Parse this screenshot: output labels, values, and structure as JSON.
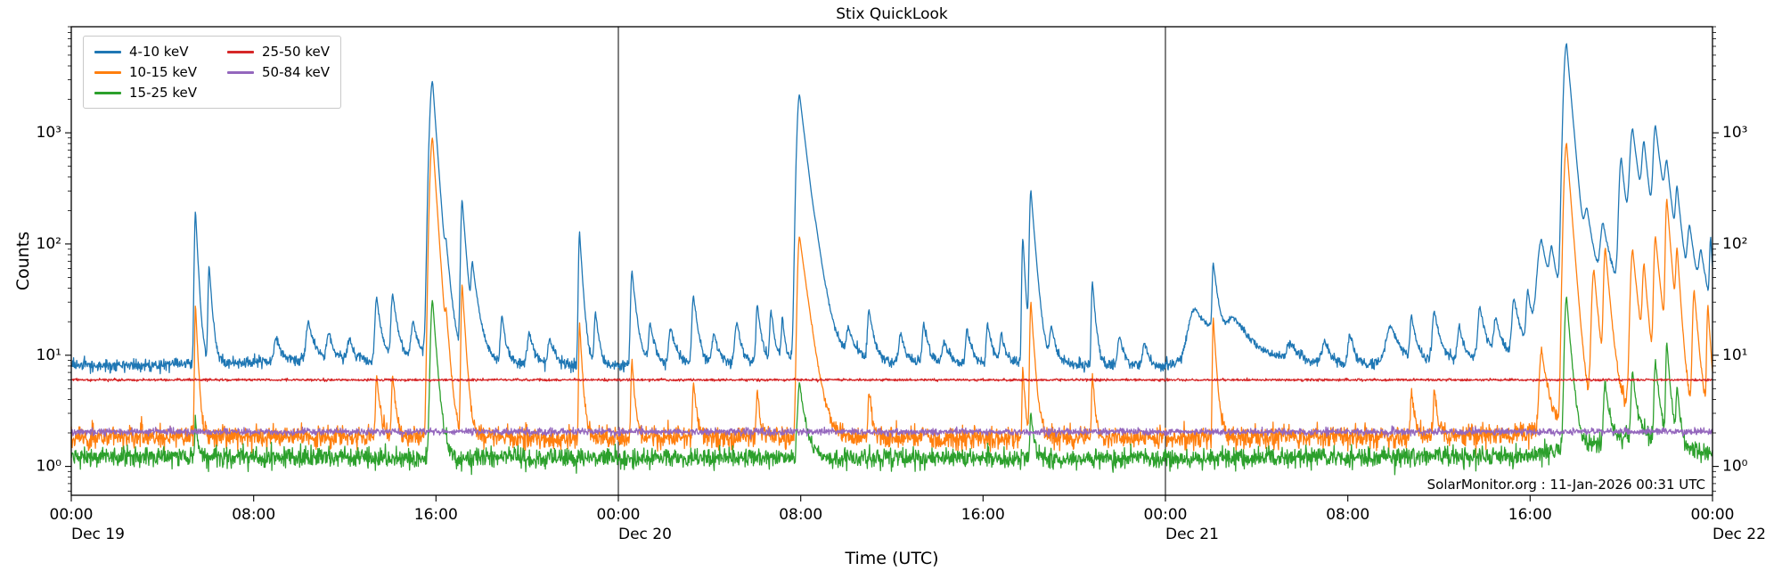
{
  "chart_data": {
    "type": "line",
    "title": "Stix QuickLook",
    "xlabel": "Time (UTC)",
    "ylabel": "Counts",
    "yscale": "log",
    "ylim": [
      0.55,
      9000
    ],
    "x_hours_range": [
      0,
      72
    ],
    "grid": false,
    "legend_position": "upper-left",
    "watermark": "SolarMonitor.org : 11-Jan-2026 00:31 UTC",
    "day_lines": [
      24,
      48
    ],
    "x_major_ticks": [
      {
        "t": 0,
        "label": "00:00",
        "day": "Dec 19"
      },
      {
        "t": 8,
        "label": "08:00"
      },
      {
        "t": 16,
        "label": "16:00"
      },
      {
        "t": 24,
        "label": "00:00",
        "day": "Dec 20"
      },
      {
        "t": 32,
        "label": "08:00"
      },
      {
        "t": 40,
        "label": "16:00"
      },
      {
        "t": 48,
        "label": "00:00",
        "day": "Dec 21"
      },
      {
        "t": 56,
        "label": "08:00"
      },
      {
        "t": 64,
        "label": "16:00"
      },
      {
        "t": 72,
        "label": "00:00",
        "day": "Dec 22"
      }
    ],
    "y_ticks": [
      {
        "v": 1,
        "label": "10⁰"
      },
      {
        "v": 10,
        "label": "10¹"
      },
      {
        "v": 100,
        "label": "10²"
      },
      {
        "v": 1000,
        "label": "10³"
      }
    ],
    "series": [
      {
        "name": "4-10 keV",
        "color": "#1f77b4",
        "noise_sigma": 0.06,
        "seed": 1,
        "baseline": [
          [
            0,
            8.2
          ],
          [
            3,
            8.0
          ],
          [
            6,
            8.5
          ],
          [
            9,
            8.8
          ],
          [
            12,
            9.0
          ],
          [
            15,
            9.2
          ],
          [
            16.2,
            10.5
          ],
          [
            17,
            9.2
          ],
          [
            18,
            8.6
          ],
          [
            21,
            8.2
          ],
          [
            24,
            8.0
          ],
          [
            27,
            8.2
          ],
          [
            30,
            8.5
          ],
          [
            32,
            9.5
          ],
          [
            32.8,
            12
          ],
          [
            33.6,
            9.5
          ],
          [
            36,
            8.5
          ],
          [
            39,
            8.3
          ],
          [
            42,
            8.6
          ],
          [
            45,
            8.0
          ],
          [
            48,
            7.8
          ],
          [
            49,
            9.5
          ],
          [
            50,
            12
          ],
          [
            51,
            11
          ],
          [
            52,
            9
          ],
          [
            54,
            8.2
          ],
          [
            56,
            8.0
          ],
          [
            58,
            8.4
          ],
          [
            60,
            8.6
          ],
          [
            62,
            9.2
          ],
          [
            63,
            9.6
          ],
          [
            64,
            11
          ],
          [
            65,
            14
          ],
          [
            66,
            24
          ],
          [
            67,
            30
          ],
          [
            68,
            34
          ],
          [
            69,
            46
          ],
          [
            70,
            36
          ],
          [
            71,
            22
          ],
          [
            72,
            15
          ]
        ],
        "spikes": [
          [
            5.45,
            190,
            0.04,
            0.1
          ],
          [
            6.05,
            55,
            0.04,
            0.12
          ],
          [
            9.0,
            6,
            0.08,
            0.2
          ],
          [
            10.4,
            11,
            0.08,
            0.25
          ],
          [
            11.3,
            7,
            0.08,
            0.2
          ],
          [
            12.2,
            5,
            0.08,
            0.2
          ],
          [
            13.4,
            24,
            0.06,
            0.18
          ],
          [
            14.1,
            26,
            0.06,
            0.2
          ],
          [
            15.0,
            11,
            0.08,
            0.2
          ],
          [
            15.85,
            2900,
            0.1,
            0.15
          ],
          [
            16.45,
            45,
            0.05,
            0.2
          ],
          [
            17.15,
            240,
            0.05,
            0.15
          ],
          [
            17.6,
            48,
            0.05,
            0.25
          ],
          [
            18.9,
            14,
            0.06,
            0.15
          ],
          [
            20.1,
            8,
            0.08,
            0.2
          ],
          [
            21.0,
            6,
            0.08,
            0.2
          ],
          [
            22.3,
            120,
            0.04,
            0.12
          ],
          [
            23.0,
            16,
            0.05,
            0.15
          ],
          [
            24.6,
            48,
            0.05,
            0.18
          ],
          [
            25.4,
            11,
            0.06,
            0.2
          ],
          [
            26.3,
            9,
            0.08,
            0.25
          ],
          [
            27.3,
            26,
            0.06,
            0.18
          ],
          [
            28.2,
            7,
            0.08,
            0.2
          ],
          [
            29.2,
            11,
            0.08,
            0.2
          ],
          [
            30.1,
            20,
            0.05,
            0.15
          ],
          [
            30.7,
            16,
            0.05,
            0.15
          ],
          [
            31.2,
            13,
            0.04,
            0.1
          ],
          [
            31.95,
            2200,
            0.09,
            0.25
          ],
          [
            32.7,
            18,
            0.1,
            0.5
          ],
          [
            34.1,
            7,
            0.08,
            0.25
          ],
          [
            35.0,
            16,
            0.06,
            0.2
          ],
          [
            36.4,
            7,
            0.08,
            0.2
          ],
          [
            37.4,
            11,
            0.06,
            0.2
          ],
          [
            38.3,
            5,
            0.08,
            0.2
          ],
          [
            39.3,
            9,
            0.06,
            0.2
          ],
          [
            40.2,
            11,
            0.05,
            0.18
          ],
          [
            40.8,
            7,
            0.05,
            0.18
          ],
          [
            41.75,
            105,
            0.04,
            0.1
          ],
          [
            42.1,
            290,
            0.05,
            0.16
          ],
          [
            43.0,
            9,
            0.06,
            0.2
          ],
          [
            44.8,
            38,
            0.04,
            0.13
          ],
          [
            46.0,
            7,
            0.08,
            0.2
          ],
          [
            47.1,
            5,
            0.08,
            0.2
          ],
          [
            49.3,
            16,
            0.25,
            0.7
          ],
          [
            50.1,
            52,
            0.04,
            0.18
          ],
          [
            51.0,
            9,
            0.25,
            0.9
          ],
          [
            53.5,
            4,
            0.15,
            0.4
          ],
          [
            55.0,
            5,
            0.12,
            0.3
          ],
          [
            56.1,
            7,
            0.08,
            0.2
          ],
          [
            57.9,
            10,
            0.2,
            0.4
          ],
          [
            58.8,
            13,
            0.06,
            0.2
          ],
          [
            59.8,
            16,
            0.08,
            0.25
          ],
          [
            60.9,
            9,
            0.08,
            0.2
          ],
          [
            61.8,
            18,
            0.08,
            0.25
          ],
          [
            62.5,
            11,
            0.08,
            0.25
          ],
          [
            63.3,
            22,
            0.08,
            0.25
          ],
          [
            63.9,
            26,
            0.06,
            0.2
          ],
          [
            64.5,
            95,
            0.15,
            0.35
          ],
          [
            64.95,
            55,
            0.08,
            0.25
          ],
          [
            65.6,
            6300,
            0.1,
            0.18
          ],
          [
            66.5,
            140,
            0.1,
            0.3
          ],
          [
            67.2,
            110,
            0.1,
            0.3
          ],
          [
            68.0,
            550,
            0.08,
            0.2
          ],
          [
            68.5,
            1000,
            0.1,
            0.25
          ],
          [
            69.0,
            650,
            0.08,
            0.2
          ],
          [
            69.5,
            1050,
            0.08,
            0.25
          ],
          [
            70.0,
            380,
            0.08,
            0.2
          ],
          [
            70.45,
            240,
            0.06,
            0.18
          ],
          [
            71.0,
            110,
            0.08,
            0.25
          ],
          [
            71.5,
            55,
            0.08,
            0.25
          ],
          [
            71.92,
            85,
            0.04,
            0.1
          ]
        ]
      },
      {
        "name": "10-15 keV",
        "color": "#ff7f0e",
        "noise_sigma": 0.11,
        "seed": 2,
        "baseline": [
          [
            0,
            1.85
          ],
          [
            24,
            1.82
          ],
          [
            48,
            1.8
          ],
          [
            63,
            1.9
          ],
          [
            65,
            2.2
          ],
          [
            66,
            2.6
          ],
          [
            68,
            3.2
          ],
          [
            69,
            3.6
          ],
          [
            70,
            3.1
          ],
          [
            71,
            2.6
          ],
          [
            72,
            2.3
          ]
        ],
        "spikes": [
          [
            5.45,
            27,
            0.03,
            0.09
          ],
          [
            13.4,
            5,
            0.04,
            0.12
          ],
          [
            14.1,
            5,
            0.04,
            0.12
          ],
          [
            15.85,
            900,
            0.09,
            0.14
          ],
          [
            16.45,
            12,
            0.04,
            0.15
          ],
          [
            17.15,
            42,
            0.04,
            0.12
          ],
          [
            22.3,
            18,
            0.03,
            0.1
          ],
          [
            24.6,
            7,
            0.04,
            0.12
          ],
          [
            27.3,
            4,
            0.04,
            0.12
          ],
          [
            30.1,
            3,
            0.04,
            0.1
          ],
          [
            31.95,
            115,
            0.07,
            0.28
          ],
          [
            35.0,
            3,
            0.04,
            0.12
          ],
          [
            41.75,
            6,
            0.03,
            0.09
          ],
          [
            42.1,
            28,
            0.04,
            0.13
          ],
          [
            44.8,
            5,
            0.03,
            0.1
          ],
          [
            50.1,
            20,
            0.03,
            0.12
          ],
          [
            58.8,
            3,
            0.04,
            0.12
          ],
          [
            59.8,
            3,
            0.04,
            0.12
          ],
          [
            64.5,
            9,
            0.08,
            0.25
          ],
          [
            65.6,
            800,
            0.09,
            0.16
          ],
          [
            66.8,
            55,
            0.08,
            0.18
          ],
          [
            67.3,
            85,
            0.06,
            0.18
          ],
          [
            68.5,
            85,
            0.08,
            0.2
          ],
          [
            69.0,
            55,
            0.06,
            0.16
          ],
          [
            69.5,
            110,
            0.06,
            0.2
          ],
          [
            70.0,
            240,
            0.05,
            0.16
          ],
          [
            70.45,
            75,
            0.05,
            0.13
          ],
          [
            71.2,
            35,
            0.06,
            0.16
          ],
          [
            71.8,
            25,
            0.04,
            0.12
          ]
        ]
      },
      {
        "name": "15-25 keV",
        "color": "#2ca02c",
        "noise_sigma": 0.1,
        "seed": 3,
        "baseline": [
          [
            0,
            1.22
          ],
          [
            24,
            1.2
          ],
          [
            48,
            1.18
          ],
          [
            64,
            1.25
          ],
          [
            66,
            1.5
          ],
          [
            68,
            1.8
          ],
          [
            69,
            1.9
          ],
          [
            70,
            1.6
          ],
          [
            71,
            1.4
          ],
          [
            72,
            1.3
          ]
        ],
        "spikes": [
          [
            5.45,
            1.5,
            0.03,
            0.09
          ],
          [
            15.85,
            30,
            0.07,
            0.15
          ],
          [
            31.95,
            4.5,
            0.07,
            0.22
          ],
          [
            42.1,
            1.8,
            0.04,
            0.12
          ],
          [
            65.6,
            32,
            0.07,
            0.16
          ],
          [
            67.3,
            4,
            0.06,
            0.16
          ],
          [
            68.5,
            5,
            0.06,
            0.16
          ],
          [
            69.5,
            7,
            0.05,
            0.16
          ],
          [
            70.0,
            11,
            0.04,
            0.13
          ],
          [
            70.45,
            3.5,
            0.04,
            0.12
          ]
        ]
      },
      {
        "name": "25-50 keV",
        "color": "#d62728",
        "noise_sigma": 0.012,
        "seed": 4,
        "baseline": [
          [
            0,
            6.0
          ],
          [
            72,
            6.0
          ]
        ],
        "spikes": []
      },
      {
        "name": "50-84 keV",
        "color": "#9467bd",
        "noise_sigma": 0.035,
        "seed": 5,
        "baseline": [
          [
            0,
            2.05
          ],
          [
            72,
            2.05
          ]
        ],
        "spikes": []
      }
    ]
  }
}
